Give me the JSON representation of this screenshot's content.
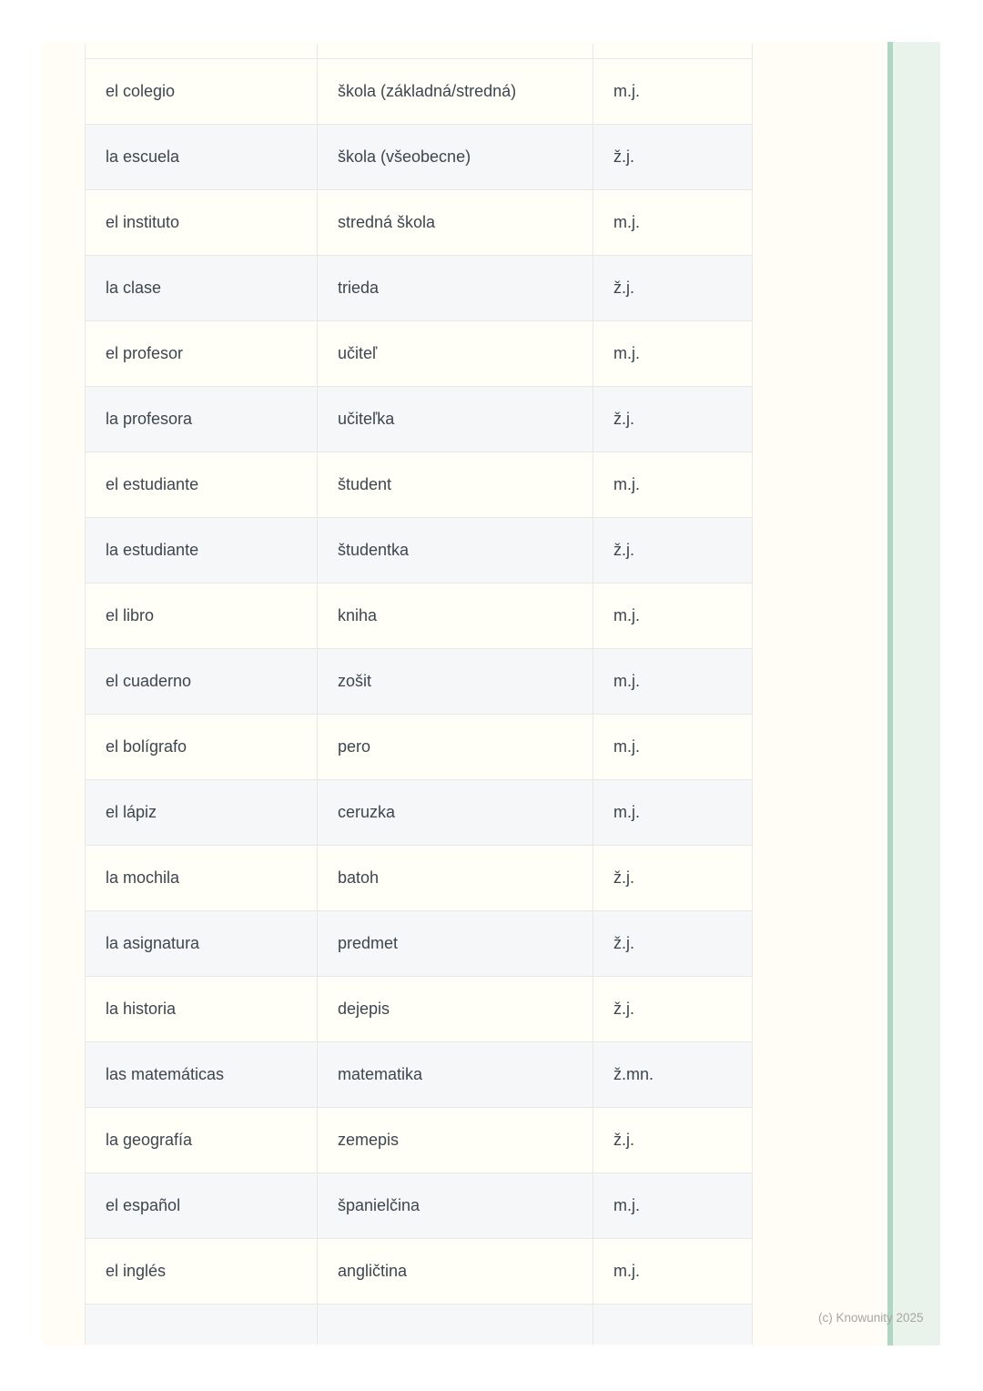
{
  "page": {
    "background_color": "#fffdf5",
    "accent_green": "#0e9a6a",
    "stripe_fill": "#e9f3ec",
    "stripe_edge_color": "#aed6c3",
    "row_color": "#fffef7",
    "row_alt_color": "#f5f7f9",
    "border_color": "#e6e8e9",
    "text_color": "#3d4650"
  },
  "table": {
    "column_keys": [
      "spanish",
      "slovak",
      "gender"
    ],
    "rows": [
      [
        "el colegio",
        "škola (základná/stredná)",
        "m.j."
      ],
      [
        "la escuela",
        "škola (všeobecne)",
        "ž.j."
      ],
      [
        "el instituto",
        "stredná škola",
        "m.j."
      ],
      [
        "la clase",
        "trieda",
        "ž.j."
      ],
      [
        "el profesor",
        "učiteľ",
        "m.j."
      ],
      [
        "la profesora",
        "učiteľka",
        "ž.j."
      ],
      [
        "el estudiante",
        "študent",
        "m.j."
      ],
      [
        "la estudiante",
        "študentka",
        "ž.j."
      ],
      [
        "el libro",
        "kniha",
        "m.j."
      ],
      [
        "el cuaderno",
        "zošit",
        "m.j."
      ],
      [
        "el bolígrafo",
        "pero",
        "m.j."
      ],
      [
        "el lápiz",
        "ceruzka",
        "m.j."
      ],
      [
        "la mochila",
        "batoh",
        "ž.j."
      ],
      [
        "la asignatura",
        "predmet",
        "ž.j."
      ],
      [
        "la historia",
        "dejepis",
        "ž.j."
      ],
      [
        "las matemáticas",
        "matematika",
        "ž.mn."
      ],
      [
        "la geografía",
        "zemepis",
        "ž.j."
      ],
      [
        "el español",
        "španielčina",
        "m.j."
      ],
      [
        "el inglés",
        "angličtina",
        "m.j."
      ]
    ]
  },
  "footer": {
    "copyright": "(c) Knowunity 2025"
  }
}
